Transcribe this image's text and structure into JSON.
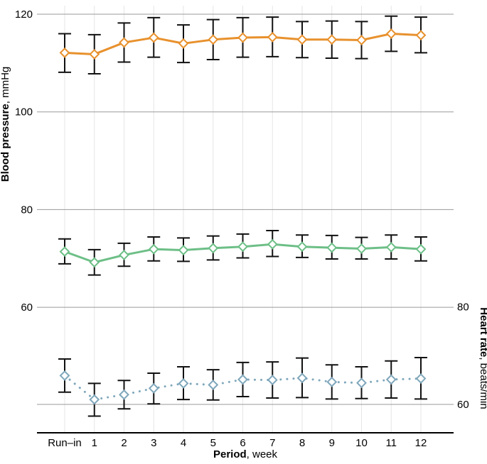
{
  "chart_data": {
    "type": "line",
    "categories": [
      "Run–in",
      "1",
      "2",
      "3",
      "4",
      "5",
      "6",
      "7",
      "8",
      "9",
      "10",
      "11",
      "12"
    ],
    "xlabel_bold": "Period",
    "xlabel_rest": ", week",
    "left_axis": {
      "title_bold": "Blood pressure",
      "title_rest": ", mmHg",
      "ticks": [
        60,
        80,
        100,
        120
      ],
      "range": [
        50,
        120
      ]
    },
    "right_axis": {
      "title_bold": "Heart rate",
      "title_rest": ", beats/min",
      "ticks": [
        60,
        80
      ]
    },
    "grid": true,
    "series": [
      {
        "axis": "left",
        "color": "#e8912d",
        "line_style": "solid",
        "marker": "diamond",
        "values": [
          112.1,
          111.8,
          114.2,
          115.2,
          114.0,
          114.8,
          115.2,
          115.3,
          114.8,
          114.8,
          114.7,
          116.0,
          115.7
        ],
        "lower": [
          108.1,
          107.8,
          110.2,
          111.2,
          110.1,
          110.7,
          111.2,
          111.3,
          111.1,
          111.0,
          110.9,
          112.4,
          112.1
        ],
        "upper": [
          116.0,
          115.8,
          118.2,
          119.3,
          117.8,
          118.9,
          119.3,
          119.4,
          118.5,
          118.6,
          118.5,
          119.6,
          119.4
        ]
      },
      {
        "axis": "left",
        "color": "#6dbf87",
        "line_style": "solid",
        "marker": "diamond",
        "values": [
          71.4,
          69.2,
          70.7,
          71.9,
          71.7,
          72.1,
          72.4,
          72.9,
          72.4,
          72.2,
          72.0,
          72.3,
          71.9
        ],
        "lower": [
          68.9,
          66.6,
          68.4,
          69.5,
          69.4,
          69.7,
          70.1,
          70.4,
          70.2,
          69.9,
          69.9,
          69.9,
          69.5
        ],
        "upper": [
          74.0,
          71.8,
          73.1,
          74.4,
          74.2,
          74.6,
          75.0,
          75.7,
          74.8,
          74.7,
          74.3,
          74.8,
          74.4
        ]
      },
      {
        "axis": "right",
        "color": "#7fa7bb",
        "line_style": "dotted",
        "marker": "diamond",
        "values": [
          65.9,
          61.0,
          62.0,
          63.3,
          64.3,
          64.0,
          65.1,
          65.0,
          65.4,
          64.6,
          64.4,
          65.1,
          65.3
        ],
        "lower": [
          62.5,
          57.6,
          59.1,
          60.1,
          61.0,
          60.9,
          61.6,
          61.3,
          61.4,
          61.1,
          61.2,
          61.3,
          61.1
        ],
        "upper": [
          69.3,
          64.3,
          64.9,
          66.4,
          67.7,
          67.1,
          68.6,
          68.7,
          69.5,
          68.1,
          67.7,
          68.9,
          69.6
        ]
      }
    ]
  }
}
